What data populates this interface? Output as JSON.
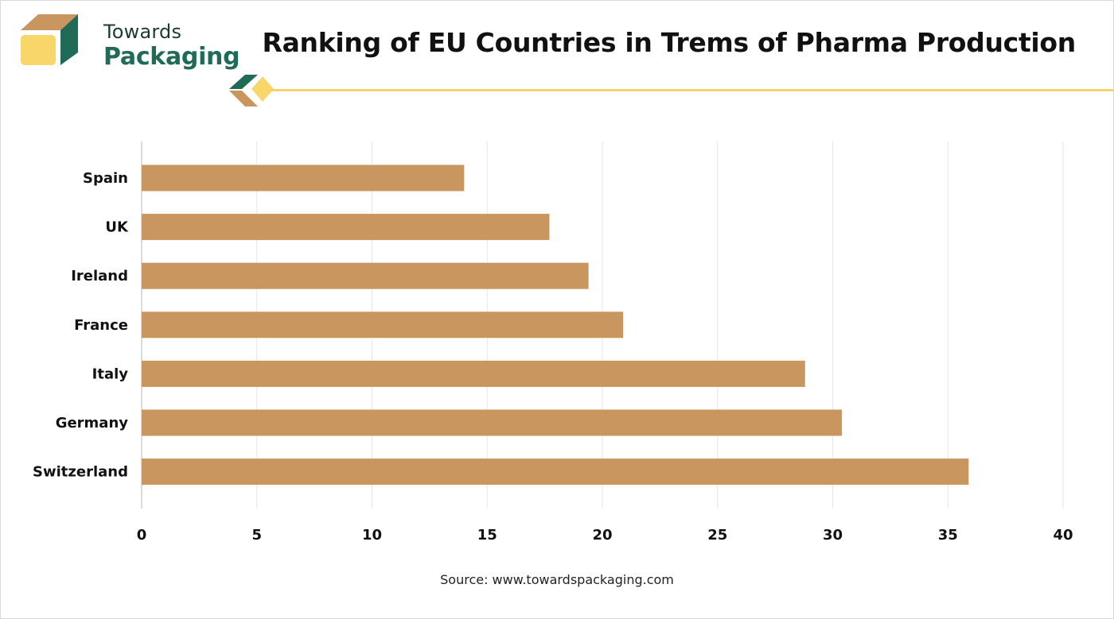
{
  "brand": {
    "name_line1": "Towards",
    "name_line2": "Packaging",
    "colors": {
      "dark_green": "#1f6b57",
      "tan": "#c9965f",
      "yellow": "#f9d66a"
    }
  },
  "title": "Ranking of EU Countries in Trems of Pharma Production",
  "source": "Source: www.towardspackaging.com",
  "chart_data": {
    "type": "bar",
    "orientation": "horizontal",
    "categories": [
      "Spain",
      "UK",
      "Ireland",
      "France",
      "Italy",
      "Germany",
      "Switzerland"
    ],
    "values": [
      14,
      17.7,
      19.4,
      20.9,
      28.8,
      30.4,
      35.9
    ],
    "xlim": [
      0,
      40
    ],
    "xticks": [
      0,
      5,
      10,
      15,
      20,
      25,
      30,
      35,
      40
    ],
    "bar_color": "#c9965f",
    "grid": "vertical",
    "legend": "none"
  }
}
